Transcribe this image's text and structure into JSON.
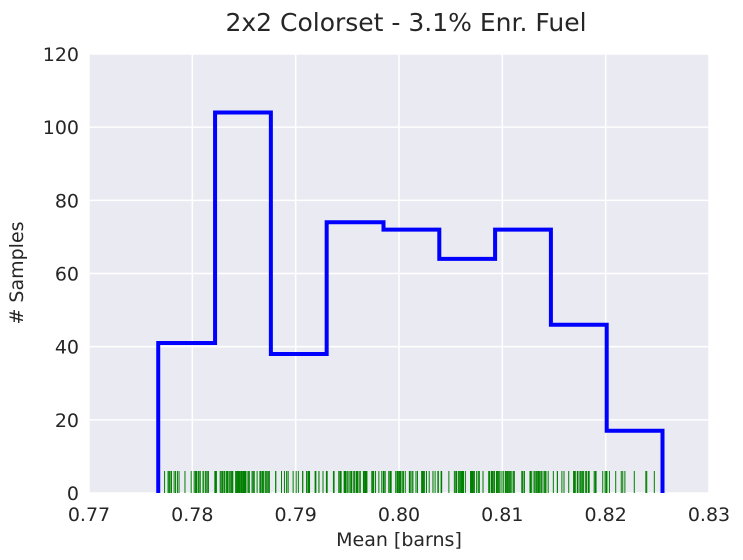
{
  "chart_data": {
    "type": "histogram",
    "title": "2x2 Colorset - 3.1% Enr. Fuel",
    "xlabel": "Mean [barns]",
    "ylabel": "# Samples",
    "xlim": [
      0.77,
      0.83
    ],
    "ylim": [
      0,
      120
    ],
    "x_ticks": [
      "0.77",
      "0.78",
      "0.79",
      "0.80",
      "0.81",
      "0.82",
      "0.83"
    ],
    "y_ticks": [
      "0",
      "20",
      "40",
      "60",
      "80",
      "100",
      "120"
    ],
    "grid": true,
    "bin_edges": [
      0.7767,
      0.7822,
      0.7876,
      0.793,
      0.7985,
      0.8039,
      0.8093,
      0.8147,
      0.8201,
      0.8255
    ],
    "counts": [
      41,
      104,
      38,
      74,
      72,
      64,
      72,
      46,
      17
    ],
    "histogram_color": "#0000ff",
    "rug_color": "#008000",
    "colors": {
      "background": "#eaeaf2",
      "grid": "#ffffff"
    }
  }
}
